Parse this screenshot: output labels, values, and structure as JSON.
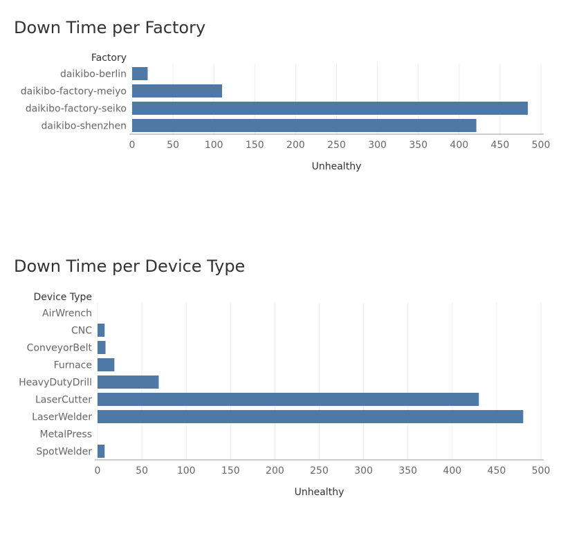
{
  "colors": {
    "bar": "#4e79a7",
    "grid": "#ececec",
    "axis": "#999999",
    "label": "#666666",
    "header": "#333333"
  },
  "chart_data": [
    {
      "type": "bar",
      "orientation": "horizontal",
      "title": "Down Time per Factory",
      "category_header": "Factory",
      "categories": [
        "daikibo-berlin",
        "daikibo-factory-meiyo",
        "daikibo-factory-seiko",
        "daikibo-shenzhen"
      ],
      "values": [
        19,
        110,
        484,
        421
      ],
      "xlabel": "Unhealthy",
      "xticks": [
        0,
        50,
        100,
        150,
        200,
        250,
        300,
        350,
        400,
        450,
        500
      ],
      "xlim": [
        0,
        500
      ],
      "grid": true
    },
    {
      "type": "bar",
      "orientation": "horizontal",
      "title": "Down Time per Device Type",
      "category_header": "Device Type",
      "categories": [
        "AirWrench",
        "CNC",
        "ConveyorBelt",
        "Furnace",
        "HeavyDutyDrill",
        "LaserCutter",
        "LaserWelder",
        "MetalPress",
        "SpotWelder"
      ],
      "values": [
        0,
        8,
        9,
        19,
        69,
        430,
        480,
        0,
        8
      ],
      "xlabel": "Unhealthy",
      "xticks": [
        0,
        50,
        100,
        150,
        200,
        250,
        300,
        350,
        400,
        450,
        500
      ],
      "xlim": [
        0,
        500
      ],
      "grid": true
    }
  ]
}
